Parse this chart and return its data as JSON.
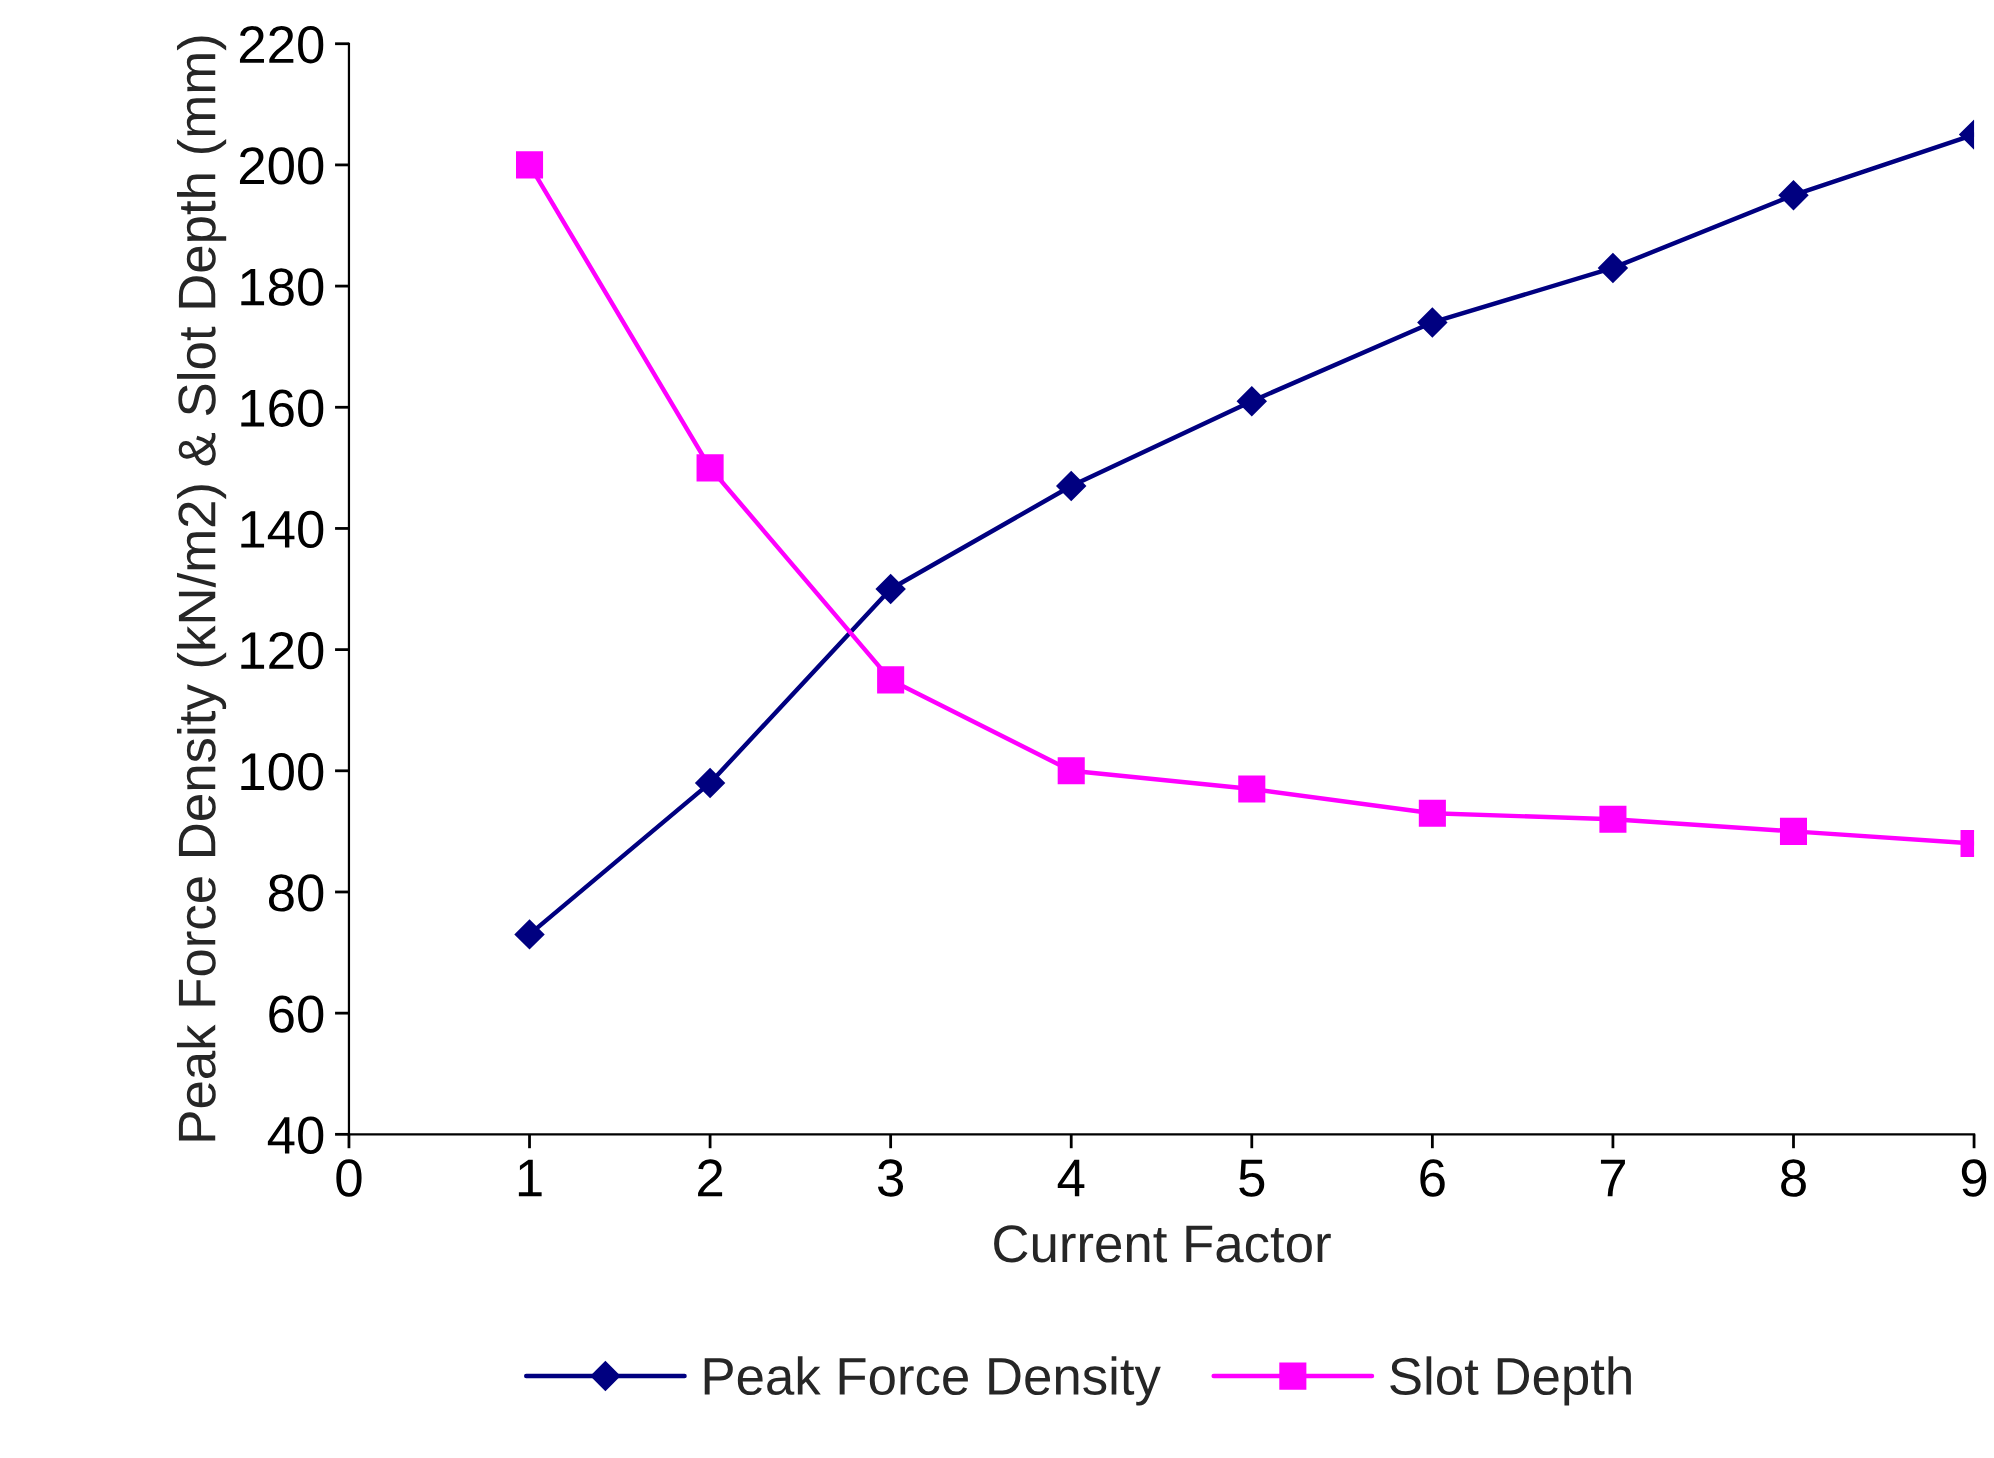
{
  "chart_data": {
    "type": "line",
    "xlabel": "Current Factor",
    "ylabel": "Peak Force Density (kN/m2) & Slot Depth (mm)",
    "x": [
      1,
      2,
      3,
      4,
      5,
      6,
      7,
      8,
      9
    ],
    "series": [
      {
        "name": "Peak Force Density",
        "color": "#000080",
        "marker": "diamond",
        "values": [
          73,
          98,
          130,
          147,
          161,
          174,
          183,
          195,
          205
        ]
      },
      {
        "name": "Slot Depth",
        "color": "#ff00ff",
        "marker": "square",
        "values": [
          200,
          150,
          115,
          100,
          97,
          93,
          92,
          90,
          88
        ]
      }
    ],
    "xlim": [
      0,
      9
    ],
    "xticks": [
      0,
      1,
      2,
      3,
      4,
      5,
      6,
      7,
      8,
      9
    ],
    "ylim": [
      40,
      220
    ],
    "yticks": [
      40,
      60,
      80,
      100,
      120,
      140,
      160,
      180,
      200,
      220
    ],
    "grid": false,
    "legend": "bottom",
    "line_style": "solid"
  }
}
